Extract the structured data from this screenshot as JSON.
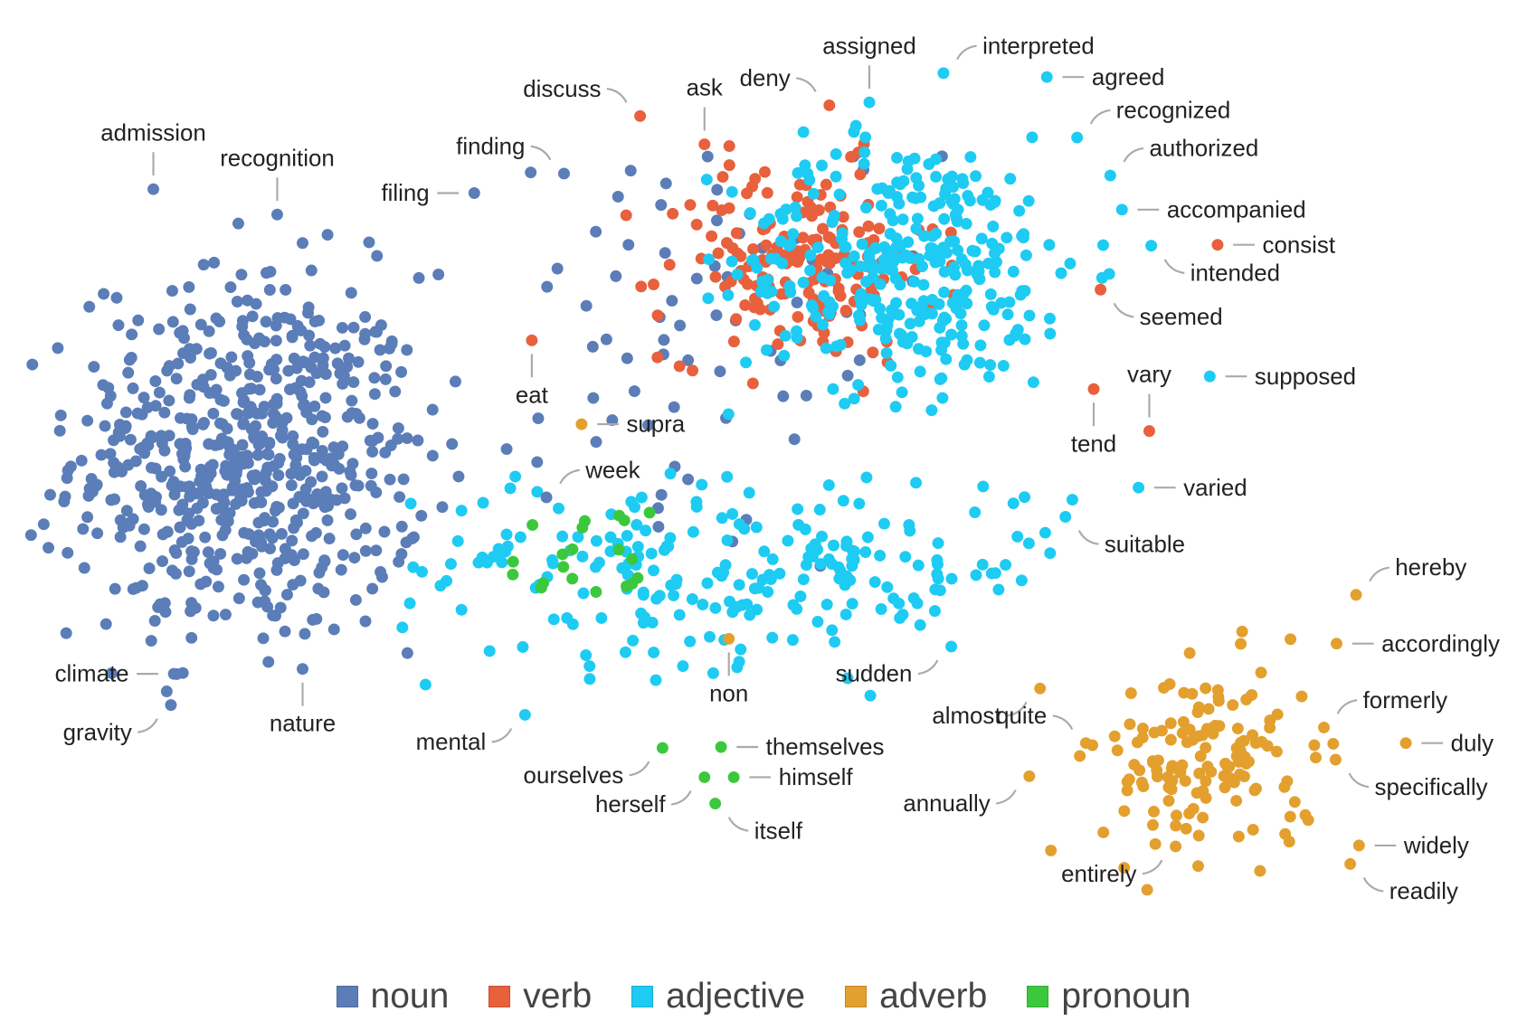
{
  "chart_data": {
    "type": "scatter",
    "title": "",
    "xlabel": "",
    "ylabel": "",
    "xlim": [
      0,
      156.5
    ],
    "ylim": [
      -4.7,
      100
    ],
    "grid": false,
    "axes_visible": false,
    "legend": {
      "placement": "bottom-center",
      "entries": [
        {
          "name": "noun",
          "color": "#5B7DB8"
        },
        {
          "name": "verb",
          "color": "#E8603C"
        },
        {
          "name": "adjective",
          "color": "#1ECBF2"
        },
        {
          "name": "adverb",
          "color": "#E3A02E"
        },
        {
          "name": "pronoun",
          "color": "#3CC83C"
        }
      ]
    },
    "labeled_points": [
      {
        "word": "admission",
        "class": "noun",
        "x": 15.7,
        "y": 80.6,
        "side": "top"
      },
      {
        "word": "recognition",
        "class": "noun",
        "x": 28.4,
        "y": 78.0,
        "side": "top"
      },
      {
        "word": "filing",
        "class": "noun",
        "x": 48.6,
        "y": 80.2,
        "side": "left"
      },
      {
        "word": "finding",
        "class": "noun",
        "x": 57.8,
        "y": 82.2,
        "side": "left-top"
      },
      {
        "word": "discuss",
        "class": "verb",
        "x": 65.6,
        "y": 88.1,
        "side": "left-top"
      },
      {
        "word": "ask",
        "class": "verb",
        "x": 72.2,
        "y": 85.2,
        "side": "top"
      },
      {
        "word": "deny",
        "class": "verb",
        "x": 85.0,
        "y": 89.2,
        "side": "left-top"
      },
      {
        "word": "assigned",
        "class": "adjective",
        "x": 89.1,
        "y": 89.5,
        "side": "top"
      },
      {
        "word": "interpreted",
        "class": "adjective",
        "x": 96.7,
        "y": 92.5,
        "side": "right-top"
      },
      {
        "word": "agreed",
        "class": "adjective",
        "x": 107.3,
        "y": 92.1,
        "side": "right"
      },
      {
        "word": "recognized",
        "class": "adjective",
        "x": 110.4,
        "y": 85.9,
        "side": "right-top"
      },
      {
        "word": "authorized",
        "class": "adjective",
        "x": 113.8,
        "y": 82.0,
        "side": "right-top"
      },
      {
        "word": "accompanied",
        "class": "adjective",
        "x": 115.0,
        "y": 78.5,
        "side": "right"
      },
      {
        "word": "consist",
        "class": "verb",
        "x": 124.8,
        "y": 74.9,
        "side": "right"
      },
      {
        "word": "intended",
        "class": "adjective",
        "x": 118.0,
        "y": 74.8,
        "side": "right-bottom"
      },
      {
        "word": "seemed",
        "class": "verb",
        "x": 112.8,
        "y": 70.3,
        "side": "right-bottom"
      },
      {
        "word": "supposed",
        "class": "adjective",
        "x": 124.0,
        "y": 61.4,
        "side": "right"
      },
      {
        "word": "vary",
        "class": "verb",
        "x": 117.8,
        "y": 55.8,
        "side": "top"
      },
      {
        "word": "tend",
        "class": "verb",
        "x": 112.1,
        "y": 60.1,
        "side": "bottom"
      },
      {
        "word": "varied",
        "class": "adjective",
        "x": 116.7,
        "y": 50.0,
        "side": "right"
      },
      {
        "word": "suitable",
        "class": "adjective",
        "x": 109.2,
        "y": 47.0,
        "side": "right-bottom"
      },
      {
        "word": "eat",
        "class": "verb",
        "x": 54.5,
        "y": 65.1,
        "side": "bottom"
      },
      {
        "word": "supra",
        "class": "adverb",
        "x": 59.6,
        "y": 56.5,
        "side": "right"
      },
      {
        "word": "week",
        "class": "noun",
        "x": 56.0,
        "y": 49.0,
        "side": "right-top"
      },
      {
        "word": "hereby",
        "class": "adverb",
        "x": 139.0,
        "y": 39.0,
        "side": "right-top"
      },
      {
        "word": "accordingly",
        "class": "adverb",
        "x": 137.0,
        "y": 34.0,
        "side": "right"
      },
      {
        "word": "formerly",
        "class": "adverb",
        "x": 135.7,
        "y": 25.4,
        "side": "right-top"
      },
      {
        "word": "duly",
        "class": "adverb",
        "x": 144.1,
        "y": 23.8,
        "side": "right"
      },
      {
        "word": "specifically",
        "class": "adverb",
        "x": 136.9,
        "y": 22.1,
        "side": "right-bottom"
      },
      {
        "word": "widely",
        "class": "adverb",
        "x": 139.3,
        "y": 13.3,
        "side": "right"
      },
      {
        "word": "readily",
        "class": "adverb",
        "x": 138.4,
        "y": 11.4,
        "side": "right-bottom"
      },
      {
        "word": "sudden",
        "class": "adjective",
        "x": 97.5,
        "y": 33.7,
        "side": "left-bottom"
      },
      {
        "word": "almost",
        "class": "adverb",
        "x": 106.6,
        "y": 29.4,
        "side": "left-bottom"
      },
      {
        "word": "quite",
        "class": "adverb",
        "x": 111.3,
        "y": 23.8,
        "side": "left-top"
      },
      {
        "word": "annually",
        "class": "adverb",
        "x": 105.5,
        "y": 20.4,
        "side": "left-bottom"
      },
      {
        "word": "entirely",
        "class": "adverb",
        "x": 120.5,
        "y": 13.2,
        "side": "left-bottom"
      },
      {
        "word": "non",
        "class": "adverb",
        "x": 74.7,
        "y": 34.5,
        "side": "bottom"
      },
      {
        "word": "mental",
        "class": "adjective",
        "x": 53.8,
        "y": 26.7,
        "side": "left-bottom"
      },
      {
        "word": "ourselves",
        "class": "pronoun",
        "x": 67.9,
        "y": 23.3,
        "side": "left-bottom"
      },
      {
        "word": "themselves",
        "class": "pronoun",
        "x": 73.9,
        "y": 23.4,
        "side": "right"
      },
      {
        "word": "himself",
        "class": "pronoun",
        "x": 75.2,
        "y": 20.3,
        "side": "right"
      },
      {
        "word": "herself",
        "class": "pronoun",
        "x": 72.2,
        "y": 20.3,
        "side": "left-bottom"
      },
      {
        "word": "itself",
        "class": "pronoun",
        "x": 73.3,
        "y": 17.6,
        "side": "right-bottom"
      },
      {
        "word": "climate",
        "class": "noun",
        "x": 17.8,
        "y": 30.9,
        "side": "left"
      },
      {
        "word": "gravity",
        "class": "noun",
        "x": 17.5,
        "y": 27.7,
        "side": "left-bottom"
      },
      {
        "word": "nature",
        "class": "noun",
        "x": 31.0,
        "y": 31.4,
        "side": "bottom"
      }
    ],
    "unlabeled_clusters": [
      {
        "class": "noun",
        "center": [
          25.5,
          53
        ],
        "sd": [
          9,
          9.5
        ],
        "count": 620,
        "xrange": [
          3,
          47
        ],
        "yrange": [
          28,
          81
        ]
      },
      {
        "class": "noun",
        "center": [
          70,
          65
        ],
        "sd": [
          13,
          12
        ],
        "count": 70,
        "xrange": [
          48,
          100
        ],
        "yrange": [
          40,
          84
        ]
      },
      {
        "class": "verb",
        "center": [
          82,
          73
        ],
        "sd": [
          7,
          5
        ],
        "count": 170,
        "xrange": [
          56,
          105
        ],
        "yrange": [
          58,
          90
        ]
      },
      {
        "class": "adjective",
        "center": [
          93,
          73
        ],
        "sd": [
          9,
          6.5
        ],
        "count": 330,
        "xrange": [
          72,
          115
        ],
        "yrange": [
          56,
          93
        ]
      },
      {
        "class": "adjective",
        "center": [
          75,
          42
        ],
        "sd": [
          18,
          5
        ],
        "count": 230,
        "xrange": [
          41,
          110
        ],
        "yrange": [
          26,
          52
        ]
      },
      {
        "class": "adverb",
        "center": [
          124,
          22
        ],
        "sd": [
          5.5,
          5
        ],
        "count": 140,
        "xrange": [
          100,
          137
        ],
        "yrange": [
          8,
          40
        ]
      },
      {
        "class": "pronoun",
        "center": [
          60,
          42
        ],
        "sd": [
          4,
          3
        ],
        "count": 20,
        "xrange": [
          50,
          72
        ],
        "yrange": [
          34,
          48
        ]
      }
    ]
  }
}
